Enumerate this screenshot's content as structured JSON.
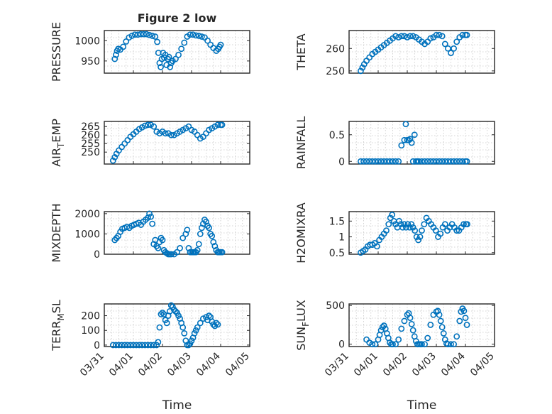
{
  "figure": {
    "title": "Figure 2 low",
    "x_tick_labels": [
      "03/31",
      "04/01",
      "04/02",
      "04/03",
      "04/04",
      "04/05"
    ],
    "xlabel": "Time",
    "marker_color": "#0072BD"
  },
  "chart_data": [
    {
      "type": "scatter",
      "key": "pressure",
      "ylabel": "PRESSURE",
      "ylim": [
        920,
        1025
      ],
      "yticks": [
        950,
        1000
      ],
      "xlim": [
        0,
        5
      ],
      "x": [
        0.36,
        0.4,
        0.44,
        0.48,
        0.55,
        0.65,
        0.75,
        0.85,
        0.95,
        1.05,
        1.15,
        1.25,
        1.35,
        1.45,
        1.55,
        1.65,
        1.75,
        1.82,
        1.86,
        1.9,
        1.94,
        1.98,
        2.02,
        2.06,
        2.1,
        2.14,
        2.18,
        2.22,
        2.26,
        2.3,
        2.35,
        2.45,
        2.55,
        2.65,
        2.75,
        2.85,
        2.95,
        3.05,
        3.15,
        3.25,
        3.35,
        3.45,
        3.55,
        3.65,
        3.75,
        3.85,
        3.92,
        3.96,
        4.0
      ],
      "y": [
        955,
        965,
        975,
        980,
        978,
        985,
        998,
        1008,
        1012,
        1015,
        1015,
        1016,
        1016,
        1016,
        1014,
        1012,
        1010,
        997,
        970,
        945,
        935,
        955,
        970,
        958,
        965,
        940,
        955,
        960,
        935,
        945,
        950,
        955,
        965,
        980,
        995,
        1010,
        1015,
        1015,
        1013,
        1012,
        1010,
        1008,
        1000,
        990,
        982,
        975,
        980,
        985,
        990
      ]
    },
    {
      "type": "scatter",
      "key": "theta",
      "ylabel": "THETA",
      "ylim": [
        249,
        268
      ],
      "yticks": [
        250,
        260
      ],
      "xlim": [
        0,
        5
      ],
      "x": [
        0.4,
        0.46,
        0.52,
        0.6,
        0.7,
        0.8,
        0.9,
        1.0,
        1.1,
        1.2,
        1.3,
        1.4,
        1.5,
        1.6,
        1.7,
        1.8,
        1.9,
        2.0,
        2.1,
        2.2,
        2.3,
        2.4,
        2.5,
        2.6,
        2.7,
        2.8,
        2.9,
        3.0,
        3.1,
        3.2,
        3.3,
        3.4,
        3.5,
        3.6,
        3.7,
        3.8,
        3.9,
        4.0,
        4.05
      ],
      "y": [
        250,
        251.5,
        253,
        254.5,
        256,
        257.5,
        258.5,
        259.5,
        260.5,
        261.5,
        262.5,
        263.5,
        264.5,
        265.5,
        265,
        265.5,
        265.5,
        265,
        265.5,
        265.5,
        265,
        264,
        263,
        262,
        263,
        264.5,
        265,
        266,
        266,
        265.5,
        262,
        260,
        258,
        260,
        263,
        265,
        266,
        266,
        266
      ]
    },
    {
      "type": "scatter",
      "key": "air_temp",
      "ylabel": "AIR",
      "ylabel_sub": "T",
      "ylabel_tail": "EMP",
      "ylim": [
        243,
        268
      ],
      "yticks": [
        250,
        255,
        260,
        265
      ],
      "xlim": [
        0,
        5
      ],
      "x": [
        0.3,
        0.36,
        0.42,
        0.5,
        0.6,
        0.7,
        0.8,
        0.9,
        1.0,
        1.1,
        1.2,
        1.3,
        1.4,
        1.5,
        1.6,
        1.7,
        1.8,
        1.9,
        2.0,
        2.1,
        2.2,
        2.3,
        2.4,
        2.5,
        2.6,
        2.7,
        2.8,
        2.9,
        3.0,
        3.1,
        3.2,
        3.3,
        3.4,
        3.5,
        3.6,
        3.7,
        3.8,
        3.9,
        4.0,
        4.05
      ],
      "y": [
        245,
        247,
        249,
        251,
        253,
        255,
        257,
        259,
        260.5,
        262,
        263.5,
        264.5,
        265.5,
        266,
        266,
        265,
        262,
        261,
        262,
        261,
        261,
        260,
        260,
        261,
        262,
        263,
        264,
        265,
        263,
        262,
        260,
        258,
        259,
        261,
        263,
        264,
        265,
        266,
        266,
        266
      ]
    },
    {
      "type": "scatter",
      "key": "rainfall",
      "ylabel": "RAINFALL",
      "ylim": [
        -0.05,
        0.75
      ],
      "yticks": [
        0,
        0.5
      ],
      "xlim": [
        0,
        5
      ],
      "x": [
        0.4,
        0.5,
        0.6,
        0.7,
        0.8,
        0.9,
        1.0,
        1.1,
        1.2,
        1.3,
        1.4,
        1.5,
        1.6,
        1.7,
        1.8,
        1.9,
        1.95,
        2.0,
        2.05,
        2.1,
        2.15,
        2.2,
        2.25,
        2.3,
        2.35,
        2.4,
        2.5,
        2.6,
        2.7,
        2.8,
        2.9,
        3.0,
        3.1,
        3.2,
        3.3,
        3.4,
        3.5,
        3.6,
        3.7,
        3.8,
        3.9,
        4.0,
        4.05
      ],
      "y": [
        0,
        0,
        0,
        0,
        0,
        0,
        0,
        0,
        0,
        0,
        0,
        0,
        0,
        0,
        0.3,
        0.4,
        0.7,
        0.4,
        0.4,
        0.42,
        0.35,
        0,
        0.5,
        0,
        0,
        0,
        0,
        0,
        0,
        0,
        0,
        0,
        0,
        0,
        0,
        0,
        0,
        0,
        0,
        0,
        0,
        0,
        0
      ]
    },
    {
      "type": "scatter",
      "key": "mixdepth",
      "ylabel": "MIXDEPTH",
      "ylim": [
        0,
        2100
      ],
      "yticks": [
        0,
        1000,
        2000
      ],
      "xlim": [
        0,
        5
      ],
      "x": [
        0.36,
        0.42,
        0.48,
        0.55,
        0.62,
        0.7,
        0.78,
        0.86,
        0.94,
        1.02,
        1.1,
        1.18,
        1.26,
        1.34,
        1.42,
        1.5,
        1.55,
        1.6,
        1.65,
        1.7,
        1.75,
        1.8,
        1.85,
        1.9,
        1.95,
        2.0,
        2.05,
        2.1,
        2.15,
        2.2,
        2.25,
        2.3,
        2.4,
        2.5,
        2.6,
        2.7,
        2.8,
        2.85,
        2.9,
        2.95,
        3.0,
        3.05,
        3.1,
        3.15,
        3.2,
        3.25,
        3.3,
        3.35,
        3.4,
        3.45,
        3.5,
        3.55,
        3.6,
        3.65,
        3.7,
        3.75,
        3.8,
        3.85,
        3.9,
        3.95,
        4.0,
        4.05
      ],
      "y": [
        700,
        800,
        900,
        1100,
        1250,
        1300,
        1350,
        1300,
        1400,
        1450,
        1500,
        1550,
        1450,
        1600,
        1700,
        1800,
        2000,
        1850,
        1500,
        500,
        700,
        400,
        300,
        600,
        800,
        700,
        200,
        100,
        50,
        0,
        0,
        0,
        0,
        100,
        300,
        800,
        1000,
        1200,
        300,
        100,
        100,
        100,
        100,
        100,
        200,
        500,
        1000,
        1300,
        1500,
        1700,
        1600,
        1400,
        1300,
        1000,
        900,
        600,
        400,
        200,
        100,
        100,
        100,
        100
      ]
    },
    {
      "type": "scatter",
      "key": "h2omixra",
      "ylabel": "H2OMIXRA",
      "ylim": [
        0.45,
        1.8
      ],
      "yticks": [
        0.5,
        1,
        1.5
      ],
      "xlim": [
        0,
        5
      ],
      "x": [
        0.4,
        0.48,
        0.56,
        0.64,
        0.72,
        0.8,
        0.88,
        0.96,
        1.04,
        1.12,
        1.2,
        1.28,
        1.36,
        1.42,
        1.48,
        1.54,
        1.6,
        1.66,
        1.72,
        1.78,
        1.84,
        1.9,
        1.96,
        2.02,
        2.08,
        2.14,
        2.2,
        2.26,
        2.32,
        2.38,
        2.44,
        2.5,
        2.58,
        2.66,
        2.74,
        2.82,
        2.9,
        2.98,
        3.06,
        3.14,
        3.22,
        3.3,
        3.38,
        3.46,
        3.54,
        3.62,
        3.7,
        3.78,
        3.86,
        3.94,
        4.02,
        4.06
      ],
      "y": [
        0.5,
        0.55,
        0.6,
        0.7,
        0.75,
        0.75,
        0.8,
        0.7,
        0.9,
        1.0,
        1.1,
        1.2,
        1.4,
        1.6,
        1.7,
        1.5,
        1.4,
        1.3,
        1.5,
        1.4,
        1.3,
        1.4,
        1.3,
        1.4,
        1.3,
        1.4,
        1.3,
        1.2,
        1.0,
        0.9,
        1.0,
        1.2,
        1.4,
        1.6,
        1.5,
        1.4,
        1.3,
        1.2,
        1.0,
        1.1,
        1.3,
        1.4,
        1.2,
        1.3,
        1.4,
        1.3,
        1.2,
        1.2,
        1.3,
        1.4,
        1.4,
        1.4
      ]
    },
    {
      "type": "scatter",
      "key": "terr_msl",
      "ylabel": "TERR",
      "ylabel_sub": "M",
      "ylabel_tail": "SL",
      "ylim": [
        -10,
        280
      ],
      "yticks": [
        0,
        100,
        200
      ],
      "xlim": [
        0,
        5
      ],
      "x": [
        0.3,
        0.4,
        0.5,
        0.6,
        0.7,
        0.8,
        0.9,
        1.0,
        1.1,
        1.2,
        1.3,
        1.4,
        1.5,
        1.6,
        1.7,
        1.8,
        1.85,
        1.9,
        1.95,
        2.0,
        2.05,
        2.1,
        2.15,
        2.2,
        2.25,
        2.3,
        2.35,
        2.4,
        2.45,
        2.5,
        2.55,
        2.6,
        2.65,
        2.7,
        2.75,
        2.8,
        2.85,
        2.9,
        2.95,
        3.0,
        3.05,
        3.1,
        3.15,
        3.2,
        3.3,
        3.4,
        3.5,
        3.55,
        3.6,
        3.65,
        3.7,
        3.75,
        3.8,
        3.85,
        3.9
      ],
      "y": [
        0,
        0,
        0,
        0,
        0,
        0,
        0,
        0,
        0,
        0,
        0,
        0,
        0,
        0,
        0,
        0,
        20,
        120,
        210,
        220,
        210,
        170,
        150,
        200,
        230,
        270,
        260,
        240,
        230,
        220,
        200,
        180,
        150,
        120,
        80,
        30,
        0,
        0,
        10,
        30,
        50,
        80,
        100,
        120,
        150,
        180,
        190,
        170,
        200,
        190,
        160,
        140,
        130,
        150,
        140
      ]
    },
    {
      "type": "scatter",
      "key": "sun_flux",
      "ylabel": "SUN",
      "ylabel_sub": "F",
      "ylabel_tail": "LUX",
      "ylim": [
        -30,
        520
      ],
      "yticks": [
        0,
        500
      ],
      "xlim": [
        0,
        5
      ],
      "x": [
        0.6,
        0.7,
        0.8,
        0.9,
        1.0,
        1.05,
        1.1,
        1.15,
        1.2,
        1.25,
        1.3,
        1.35,
        1.4,
        1.45,
        1.5,
        1.6,
        1.7,
        1.8,
        1.9,
        2.0,
        2.05,
        2.1,
        2.15,
        2.2,
        2.25,
        2.3,
        2.35,
        2.4,
        2.45,
        2.5,
        2.6,
        2.7,
        2.8,
        2.9,
        3.0,
        3.05,
        3.1,
        3.15,
        3.2,
        3.25,
        3.3,
        3.35,
        3.4,
        3.5,
        3.6,
        3.7,
        3.8,
        3.85,
        3.9,
        3.95,
        4.0,
        4.05
      ],
      "y": [
        60,
        20,
        0,
        0,
        60,
        120,
        180,
        220,
        240,
        200,
        140,
        80,
        20,
        0,
        0,
        0,
        60,
        200,
        300,
        380,
        400,
        340,
        260,
        180,
        100,
        40,
        0,
        0,
        0,
        0,
        0,
        80,
        250,
        380,
        420,
        430,
        380,
        300,
        220,
        140,
        60,
        10,
        0,
        0,
        0,
        100,
        300,
        420,
        460,
        430,
        340,
        250
      ]
    }
  ]
}
